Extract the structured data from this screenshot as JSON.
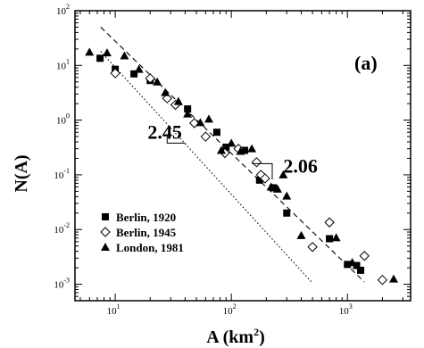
{
  "chart_data": {
    "type": "scatter",
    "panel_label": "(a)",
    "xlabel": {
      "base": "A  (km",
      "sup": "2",
      "close": ")"
    },
    "ylabel": "N(A)",
    "x_scale": "log",
    "y_scale": "log",
    "xlim": [
      4.5,
      3500
    ],
    "ylim": [
      0.0005,
      100
    ],
    "x_ticks": [
      {
        "value": 10,
        "base": "10",
        "exp": "1"
      },
      {
        "value": 100,
        "base": "10",
        "exp": "2"
      },
      {
        "value": 1000,
        "base": "10",
        "exp": "3"
      }
    ],
    "y_ticks": [
      {
        "value": 0.001,
        "base": "10",
        "exp": "-3"
      },
      {
        "value": 0.01,
        "base": "10",
        "exp": "-2"
      },
      {
        "value": 0.1,
        "base": "10",
        "exp": "-1"
      },
      {
        "value": 1,
        "base": "10",
        "exp": "0"
      },
      {
        "value": 10,
        "base": "10",
        "exp": "1"
      },
      {
        "value": 100,
        "base": "10",
        "exp": "2"
      }
    ],
    "legend_placement": "bottom-left",
    "series": [
      {
        "name": "Berlin, 1920",
        "marker": "square",
        "points": [
          [
            7.4,
            13.5
          ],
          [
            10,
            8.5
          ],
          [
            14.5,
            7
          ],
          [
            20,
            5.3
          ],
          [
            42,
            1.6
          ],
          [
            75,
            0.6
          ],
          [
            90,
            0.32
          ],
          [
            130,
            0.28
          ],
          [
            175,
            0.08
          ],
          [
            230,
            0.058
          ],
          [
            300,
            0.02
          ],
          [
            700,
            0.0068
          ],
          [
            1000,
            0.0023
          ],
          [
            1200,
            0.0022
          ],
          [
            1300,
            0.0018
          ]
        ]
      },
      {
        "name": "Berlin, 1945",
        "marker": "diamond-open",
        "points": [
          [
            10,
            7.2
          ],
          [
            20,
            5.8
          ],
          [
            28,
            2.5
          ],
          [
            33,
            1.9
          ],
          [
            48,
            0.88
          ],
          [
            60,
            0.5
          ],
          [
            88,
            0.25
          ],
          [
            115,
            0.3
          ],
          [
            165,
            0.17
          ],
          [
            180,
            0.1
          ],
          [
            195,
            0.086
          ],
          [
            500,
            0.0048
          ],
          [
            700,
            0.0135
          ],
          [
            1400,
            0.0033
          ],
          [
            2000,
            0.0012
          ]
        ]
      },
      {
        "name": "London, 1981",
        "marker": "triangle",
        "points": [
          [
            6,
            17.5
          ],
          [
            8.5,
            17
          ],
          [
            12,
            15
          ],
          [
            16,
            8.5
          ],
          [
            23,
            5
          ],
          [
            27,
            3.2
          ],
          [
            35,
            2.2
          ],
          [
            42,
            1.3
          ],
          [
            54,
            0.9
          ],
          [
            64,
            1.05
          ],
          [
            82,
            0.28
          ],
          [
            100,
            0.38
          ],
          [
            120,
            0.27
          ],
          [
            150,
            0.3
          ],
          [
            220,
            0.06
          ],
          [
            250,
            0.055
          ],
          [
            280,
            0.1
          ],
          [
            300,
            0.041
          ],
          [
            400,
            0.0078
          ],
          [
            800,
            0.0071
          ],
          [
            1100,
            0.0025
          ],
          [
            2500,
            0.00125
          ]
        ]
      }
    ],
    "fit_lines": [
      {
        "style": "dashed",
        "from": [
          7.5,
          50
        ],
        "to": [
          1400,
          0.0011
        ]
      },
      {
        "style": "dotted",
        "from": [
          7.5,
          18
        ],
        "to": [
          500,
          0.00105
        ]
      }
    ],
    "annotations": [
      {
        "text": "2.45",
        "x": 19,
        "y": 0.46
      },
      {
        "text": "2.06",
        "x": 280,
        "y": 0.11
      }
    ],
    "slope_markers": [
      {
        "points": [
          [
            28,
            0.55
          ],
          [
            28,
            0.38
          ],
          [
            40,
            0.38
          ]
        ]
      },
      {
        "points": [
          [
            150,
            0.16
          ],
          [
            225,
            0.16
          ],
          [
            225,
            0.082
          ]
        ]
      }
    ]
  }
}
